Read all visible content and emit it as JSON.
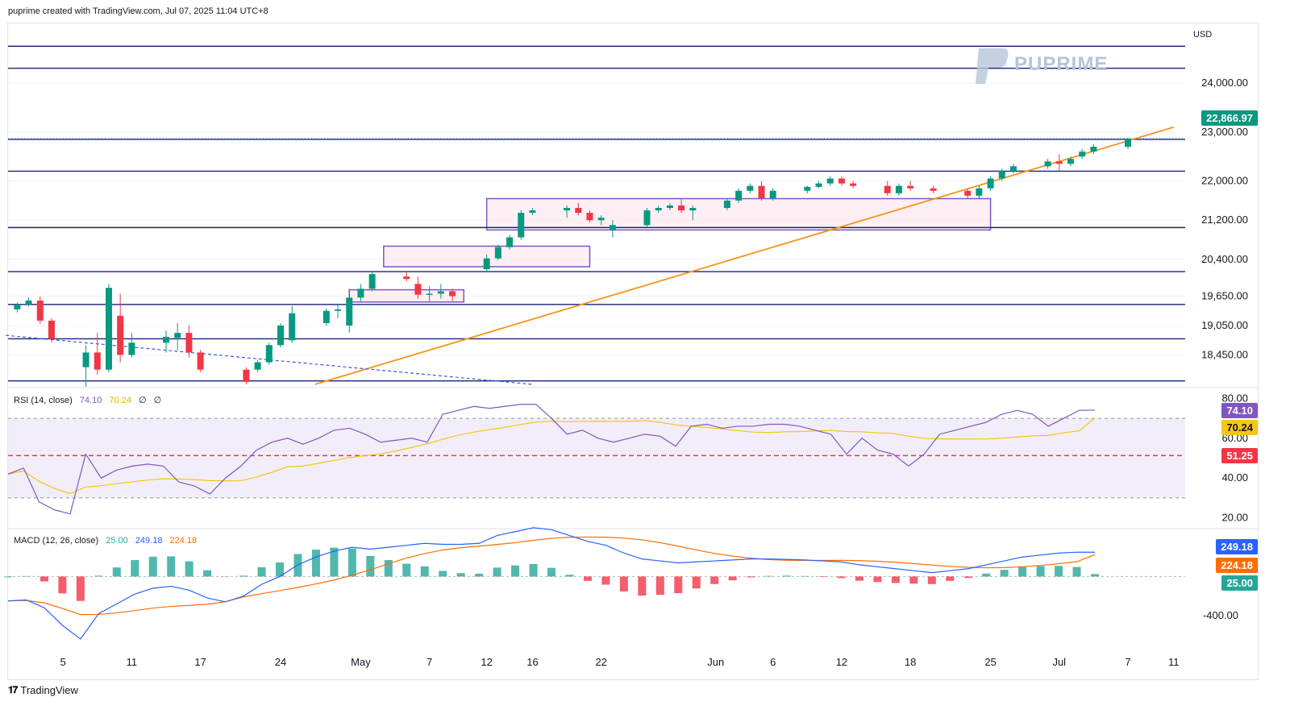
{
  "header": {
    "caption": "puprime created with TradingView.com, Jul 07, 2025 11:04 UTC+8"
  },
  "watermark": {
    "text": "PUPRIME"
  },
  "footer": {
    "brand": "TradingView"
  },
  "axis": {
    "currency": "USD",
    "price_ticks": [
      "24,000.00",
      "23,000.00",
      "22,000.00",
      "21,200.00",
      "20,400.00",
      "19,650.00",
      "19,050.00",
      "18,450.00"
    ],
    "rsi_ticks": [
      "80.00",
      "60.00",
      "40.00",
      "20.00"
    ],
    "macd_ticks": [
      "-400.00"
    ],
    "date_ticks": [
      "5",
      "11",
      "17",
      "24",
      "May",
      "7",
      "12",
      "16",
      "22",
      "Jun",
      "6",
      "12",
      "18",
      "25",
      "Jul",
      "7",
      "11"
    ]
  },
  "price_tags": {
    "last_price": "22,866.97",
    "rsi_value": "74.10",
    "rsi_ma": "70.24",
    "rsi_level": "51.25",
    "macd_line": "249.18",
    "macd_signal": "224.18",
    "macd_hist": "25.00"
  },
  "rsi_legend": {
    "label": "RSI (14, close)",
    "rsi": "74.10",
    "ma": "70.24",
    "a": "∅",
    "b": "∅"
  },
  "macd_legend": {
    "label": "MACD (12, 26, close)",
    "hist": "25.00",
    "macd": "249.18",
    "signal": "224.18"
  },
  "colors": {
    "up": "#089981",
    "down": "#f23645",
    "level": "#1a237e",
    "trend": "#f7931a",
    "zone_border": "#7e57c2",
    "zone_fill": "#fce4ec",
    "rsi": "#7e57c2",
    "rsi_ma": "#f5c518",
    "macd": "#2962ff",
    "signal": "#ff6d00",
    "lasttag": "#089981",
    "rsiband": "#ede7f6"
  },
  "chart_data": {
    "type": "candlestick",
    "symbol_currency": "USD",
    "horizontal_levels": [
      24750,
      24300,
      22850,
      22200,
      21050,
      20150,
      19480,
      18780,
      17920
    ],
    "trendline": {
      "from": {
        "date": "Apr 27",
        "price": 17850
      },
      "to": {
        "date": "Jul 11",
        "price": 23100
      }
    },
    "dashed_trendline": {
      "from": {
        "date": "Mar 31",
        "price": 18850
      },
      "to": {
        "date": "May 16",
        "price": 17850
      }
    },
    "zones": [
      {
        "from": "Apr 30",
        "to": "May 10",
        "low": 19530,
        "high": 19780
      },
      {
        "from": "May 3",
        "to": "May 21",
        "low": 20250,
        "high": 20670
      },
      {
        "from": "May 12",
        "to": "Jun 25",
        "low": 21000,
        "high": 21640
      }
    ],
    "candles": [
      [
        "Apr 1",
        19380,
        19520,
        19320,
        19480
      ],
      [
        "Apr 2",
        19480,
        19620,
        19440,
        19560
      ],
      [
        "Apr 3",
        19560,
        19640,
        19080,
        19150
      ],
      [
        "Apr 4",
        19150,
        19200,
        18700,
        18780
      ],
      [
        "Apr 7",
        18200,
        18650,
        17600,
        18500
      ],
      [
        "Apr 8",
        18500,
        18900,
        18050,
        18150
      ],
      [
        "Apr 9",
        18150,
        19900,
        18100,
        19820
      ],
      [
        "Apr 10",
        19250,
        19700,
        18300,
        18450
      ],
      [
        "Apr 11",
        18450,
        18900,
        18400,
        18700
      ],
      [
        "Apr 14",
        18700,
        18950,
        18500,
        18820
      ],
      [
        "Apr 15",
        18800,
        19100,
        18550,
        18900
      ],
      [
        "Apr 16",
        18900,
        19050,
        18400,
        18500
      ],
      [
        "Apr 17",
        18500,
        18550,
        18100,
        18150
      ],
      [
        "Apr 21",
        18150,
        18200,
        17850,
        17900
      ],
      [
        "Apr 22",
        18150,
        18350,
        18100,
        18300
      ],
      [
        "Apr 23",
        18300,
        18700,
        18250,
        18650
      ],
      [
        "Apr 24",
        18650,
        19100,
        18600,
        19050
      ],
      [
        "Apr 25",
        18750,
        19450,
        18700,
        19300
      ],
      [
        "Apr 28",
        19100,
        19400,
        19050,
        19350
      ],
      [
        "Apr 29",
        19350,
        19500,
        19200,
        19380
      ],
      [
        "Apr 30",
        19050,
        19800,
        18900,
        19620
      ],
      [
        "May 1",
        19620,
        19900,
        19550,
        19800
      ],
      [
        "May 2",
        19800,
        20150,
        19750,
        20100
      ],
      [
        "May 5",
        20050,
        20150,
        19950,
        20000
      ],
      [
        "May 6",
        19900,
        20050,
        19600,
        19680
      ],
      [
        "May 7",
        19680,
        19850,
        19550,
        19700
      ],
      [
        "May 8",
        19700,
        19900,
        19600,
        19750
      ],
      [
        "May 9",
        19750,
        19800,
        19550,
        19650
      ],
      [
        "May 12",
        20200,
        20500,
        20150,
        20420
      ],
      [
        "May 13",
        20420,
        20700,
        20380,
        20650
      ],
      [
        "May 14",
        20650,
        20900,
        20600,
        20850
      ],
      [
        "May 15",
        20850,
        21400,
        20800,
        21350
      ],
      [
        "May 16",
        21350,
        21450,
        21300,
        21400
      ],
      [
        "May 19",
        21400,
        21500,
        21250,
        21450
      ],
      [
        "May 20",
        21450,
        21550,
        21300,
        21350
      ],
      [
        "May 21",
        21350,
        21400,
        21150,
        21200
      ],
      [
        "May 22",
        21200,
        21300,
        21100,
        21250
      ],
      [
        "May 23",
        21000,
        21200,
        20850,
        21100
      ],
      [
        "May 26",
        21100,
        21450,
        21050,
        21400
      ],
      [
        "May 27",
        21400,
        21500,
        21350,
        21450
      ],
      [
        "May 28",
        21450,
        21550,
        21400,
        21500
      ],
      [
        "May 29",
        21500,
        21650,
        21350,
        21400
      ],
      [
        "May 30",
        21400,
        21500,
        21200,
        21450
      ],
      [
        "Jun 2",
        21450,
        21650,
        21400,
        21600
      ],
      [
        "Jun 3",
        21600,
        21850,
        21550,
        21800
      ],
      [
        "Jun 4",
        21800,
        21950,
        21750,
        21900
      ],
      [
        "Jun 5",
        21900,
        22000,
        21600,
        21650
      ],
      [
        "Jun 6",
        21650,
        21850,
        21600,
        21800
      ],
      [
        "Jun 9",
        21800,
        21900,
        21750,
        21880
      ],
      [
        "Jun 10",
        21880,
        22000,
        21850,
        21950
      ],
      [
        "Jun 11",
        21950,
        22100,
        21900,
        22050
      ],
      [
        "Jun 12",
        22050,
        22100,
        21900,
        21950
      ],
      [
        "Jun 13",
        21950,
        22000,
        21850,
        21900
      ],
      [
        "Jun 16",
        21900,
        22000,
        21700,
        21750
      ],
      [
        "Jun 17",
        21750,
        21950,
        21700,
        21900
      ],
      [
        "Jun 18",
        21900,
        22000,
        21800,
        21850
      ],
      [
        "Jun 20",
        21850,
        21900,
        21750,
        21800
      ],
      [
        "Jun 23",
        21800,
        21850,
        21650,
        21700
      ],
      [
        "Jun 24",
        21700,
        21900,
        21650,
        21850
      ],
      [
        "Jun 25",
        21850,
        22100,
        21800,
        22050
      ],
      [
        "Jun 26",
        22050,
        22250,
        22000,
        22200
      ],
      [
        "Jun 27",
        22200,
        22350,
        22150,
        22300
      ],
      [
        "Jun 30",
        22300,
        22450,
        22250,
        22400
      ],
      [
        "Jul 1",
        22400,
        22550,
        22200,
        22350
      ],
      [
        "Jul 2",
        22350,
        22500,
        22300,
        22450
      ],
      [
        "Jul 3",
        22500,
        22650,
        22450,
        22600
      ],
      [
        "Jul 4",
        22600,
        22750,
        22550,
        22700
      ],
      [
        "Jul 7",
        22700,
        22880,
        22650,
        22867
      ]
    ],
    "rsi": {
      "period": 14,
      "value": 74.1,
      "ma": 70.24,
      "overbought": 70,
      "oversold": 30,
      "level": 51.25,
      "ylim": [
        15,
        85
      ]
    },
    "macd": {
      "fast": 12,
      "slow": 26,
      "macd": 249.18,
      "signal": 224.18,
      "histogram": 25.0
    }
  }
}
